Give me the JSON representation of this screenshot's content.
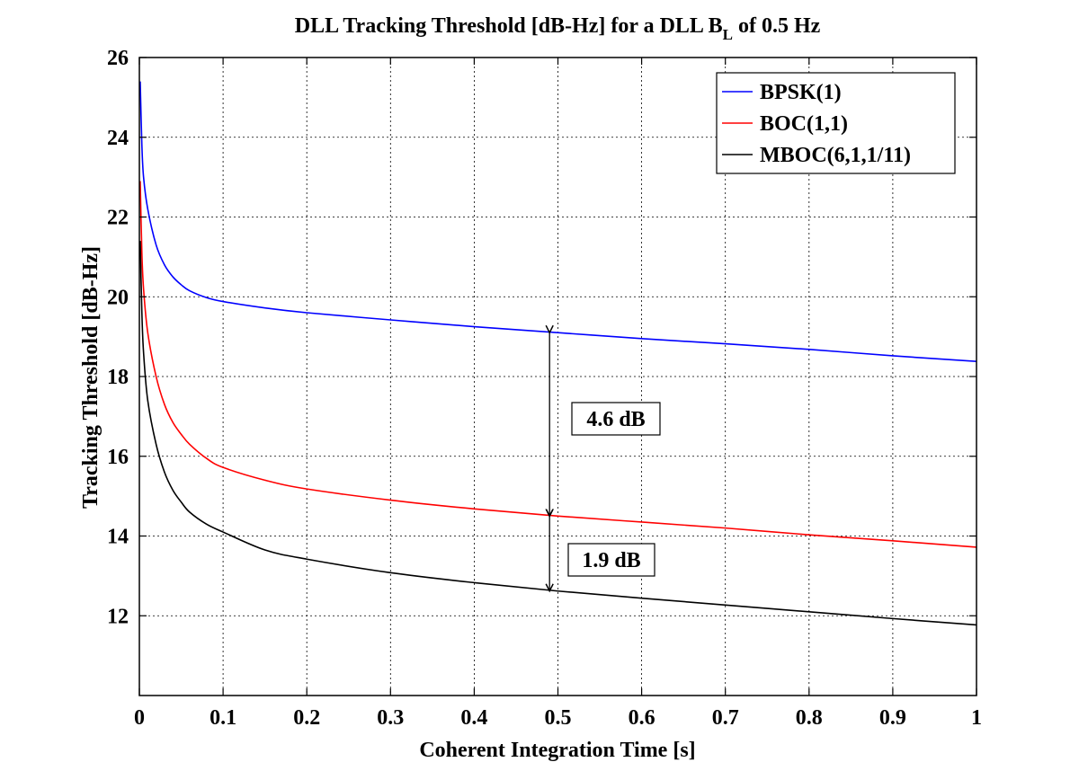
{
  "chart_data": {
    "type": "line",
    "title": "DLL Tracking Threshold [dB-Hz] for a DLL B",
    "title_subscript": "L",
    "title_suffix": " of 0.5 Hz",
    "xlabel": "Coherent Integration Time [s]",
    "ylabel": "Tracking Threshold [dB-Hz]",
    "xlim": [
      0,
      1
    ],
    "ylim": [
      10,
      26
    ],
    "xticks": [
      0,
      0.1,
      0.2,
      0.3,
      0.4,
      0.5,
      0.6,
      0.7,
      0.8,
      0.9,
      1
    ],
    "xtick_labels": [
      "0",
      "0.1",
      "0.2",
      "0.3",
      "0.4",
      "0.5",
      "0.6",
      "0.7",
      "0.8",
      "0.9",
      "1"
    ],
    "yticks": [
      12,
      14,
      16,
      18,
      20,
      22,
      24,
      26
    ],
    "ytick_labels": [
      "12",
      "14",
      "16",
      "18",
      "20",
      "22",
      "24",
      "26"
    ],
    "grid": true,
    "legend_position": "top-right",
    "series": [
      {
        "name": "BPSK(1)",
        "color": "#0000ff",
        "x": [
          0.001,
          0.003,
          0.005,
          0.01,
          0.02,
          0.03,
          0.04,
          0.05,
          0.06,
          0.08,
          0.1,
          0.15,
          0.2,
          0.3,
          0.4,
          0.5,
          0.6,
          0.7,
          0.8,
          0.9,
          1.0
        ],
        "y": [
          25.4,
          23.8,
          23.0,
          22.2,
          21.3,
          20.8,
          20.5,
          20.3,
          20.15,
          19.98,
          19.88,
          19.72,
          19.6,
          19.42,
          19.25,
          19.1,
          18.95,
          18.82,
          18.68,
          18.52,
          18.38
        ]
      },
      {
        "name": "BOC(1,1)",
        "color": "#ff0000",
        "x": [
          0.001,
          0.003,
          0.005,
          0.01,
          0.02,
          0.03,
          0.04,
          0.05,
          0.06,
          0.08,
          0.1,
          0.15,
          0.2,
          0.3,
          0.4,
          0.5,
          0.6,
          0.7,
          0.8,
          0.9,
          1.0
        ],
        "y": [
          22.9,
          21.1,
          20.2,
          19.1,
          18.0,
          17.3,
          16.85,
          16.55,
          16.3,
          15.95,
          15.72,
          15.4,
          15.18,
          14.9,
          14.68,
          14.5,
          14.35,
          14.2,
          14.03,
          13.88,
          13.72
        ]
      },
      {
        "name": "MBOC(6,1,1/11)",
        "color": "#000000",
        "x": [
          0.001,
          0.003,
          0.005,
          0.01,
          0.02,
          0.03,
          0.04,
          0.05,
          0.06,
          0.08,
          0.1,
          0.15,
          0.2,
          0.3,
          0.4,
          0.5,
          0.6,
          0.7,
          0.8,
          0.9,
          1.0
        ],
        "y": [
          21.4,
          19.6,
          18.6,
          17.4,
          16.3,
          15.6,
          15.15,
          14.85,
          14.6,
          14.3,
          14.1,
          13.65,
          13.42,
          13.08,
          12.83,
          12.62,
          12.44,
          12.27,
          12.1,
          11.93,
          11.77
        ]
      }
    ],
    "annotations": [
      {
        "text": "4.6 dB",
        "x": 0.49,
        "y_from": 19.1,
        "y_to": 14.5
      },
      {
        "text": "1.9 dB",
        "x": 0.49,
        "y_from": 14.5,
        "y_to": 12.62
      }
    ]
  }
}
